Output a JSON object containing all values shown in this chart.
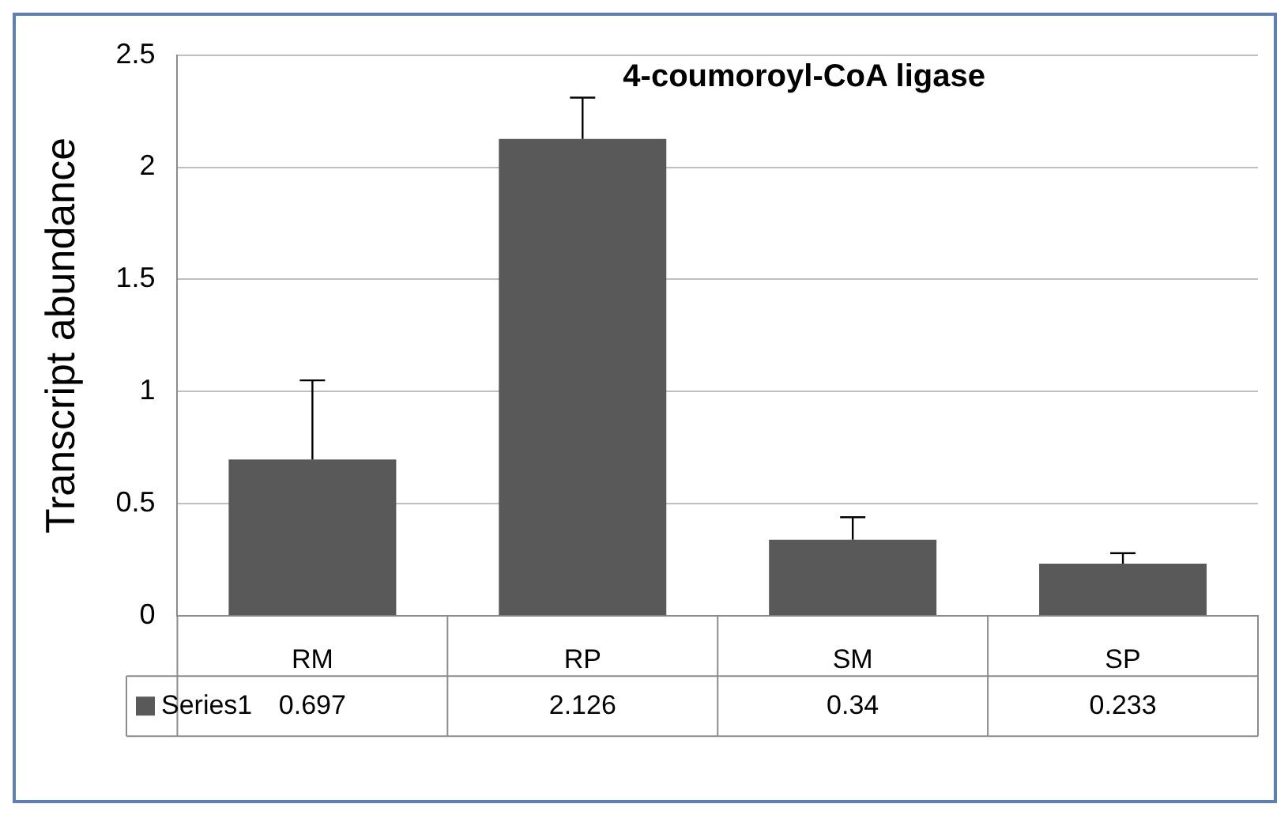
{
  "chart_data": {
    "type": "bar",
    "title": "4-coumoroyl-CoA ligase",
    "ylabel": "Transcript abundance",
    "categories": [
      "RM",
      "RP",
      "SM",
      "SP"
    ],
    "series": [
      {
        "name": "Series1",
        "color": "#595959",
        "values": [
          0.697,
          2.126,
          0.34,
          0.233
        ],
        "errors": [
          [
            0.697,
            1.05
          ],
          [
            2.126,
            2.31
          ],
          [
            0.34,
            0.44
          ],
          [
            0.233,
            0.28
          ]
        ]
      }
    ],
    "ylim": [
      0,
      2.5
    ],
    "yticks": [
      0,
      0.5,
      1,
      1.5,
      2,
      2.5
    ],
    "grid": "y",
    "data_labels": true
  }
}
